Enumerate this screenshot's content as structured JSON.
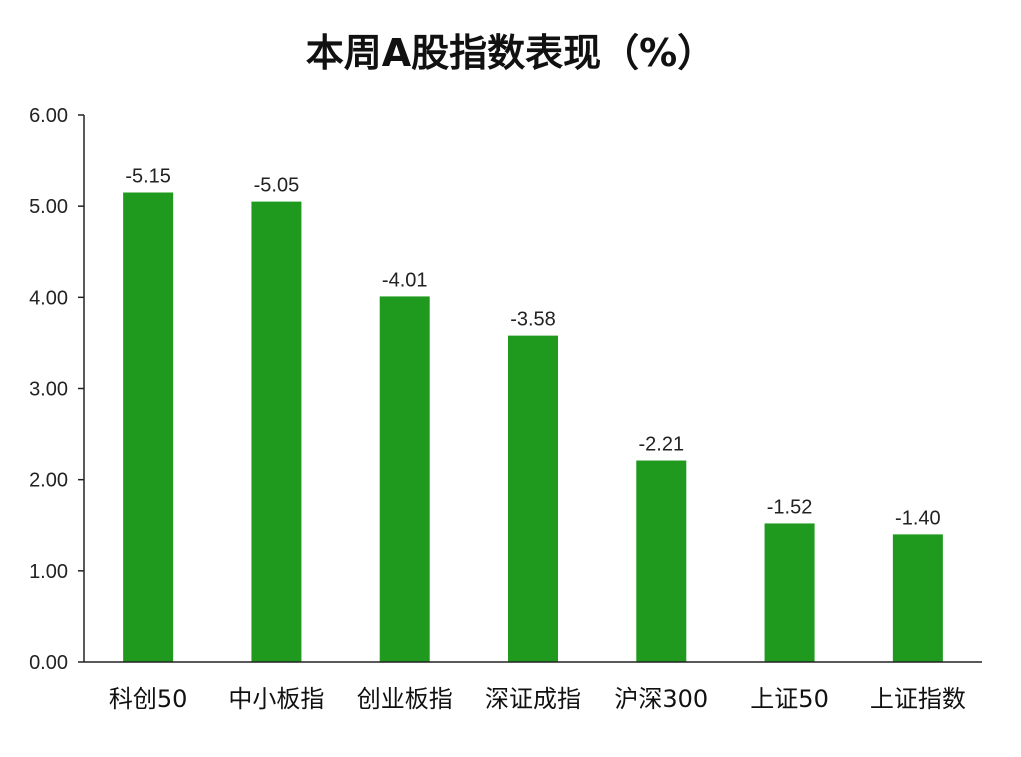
{
  "chart_data": {
    "type": "bar",
    "title": "本周A股指数表现（%）",
    "xlabel": "",
    "ylabel": "",
    "categories": [
      "科创50",
      "中小板指",
      "创业板指",
      "深证成指",
      "沪深300",
      "上证50",
      "上证指数"
    ],
    "values": [
      5.15,
      5.05,
      4.01,
      3.58,
      2.21,
      1.52,
      1.4
    ],
    "data_labels": [
      "-5.15",
      "-5.05",
      "-4.01",
      "-3.58",
      "-2.21",
      "-1.52",
      "-1.40"
    ],
    "y_ticks": [
      "0.00",
      "1.00",
      "2.00",
      "3.00",
      "4.00",
      "5.00",
      "6.00"
    ],
    "ylim": [
      0,
      6
    ],
    "grid": false,
    "legend": "none",
    "bar_color": "#1f9a1f"
  }
}
